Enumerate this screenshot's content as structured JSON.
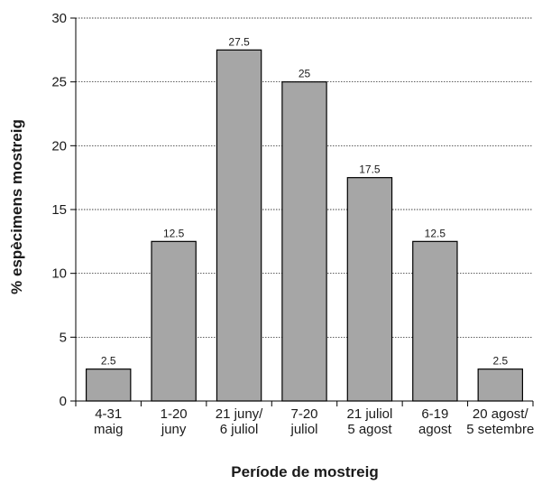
{
  "chart_data": {
    "type": "bar",
    "categories": [
      [
        "4-31",
        "maig"
      ],
      [
        "1-20",
        "juny"
      ],
      [
        "21 juny/",
        "6 juliol"
      ],
      [
        "7-20",
        "juliol"
      ],
      [
        "21 juliol",
        "5 agost"
      ],
      [
        "6-19",
        "agost"
      ],
      [
        "20 agost/",
        "5 setembre"
      ]
    ],
    "values": [
      2.5,
      12.5,
      27.5,
      25,
      17.5,
      12.5,
      2.5
    ],
    "data_labels": [
      "2.5",
      "12.5",
      "27.5",
      "25",
      "17.5",
      "12.5",
      "2.5"
    ],
    "xlabel": "Període de mostreig",
    "ylabel": "% espècimens mostreig",
    "ylim": [
      0,
      30
    ],
    "yticks": [
      0,
      5,
      10,
      15,
      20,
      25,
      30
    ],
    "grid": true,
    "legend": "none",
    "bar_color": "#a6a6a6",
    "bar_edge_color": "#000000"
  }
}
